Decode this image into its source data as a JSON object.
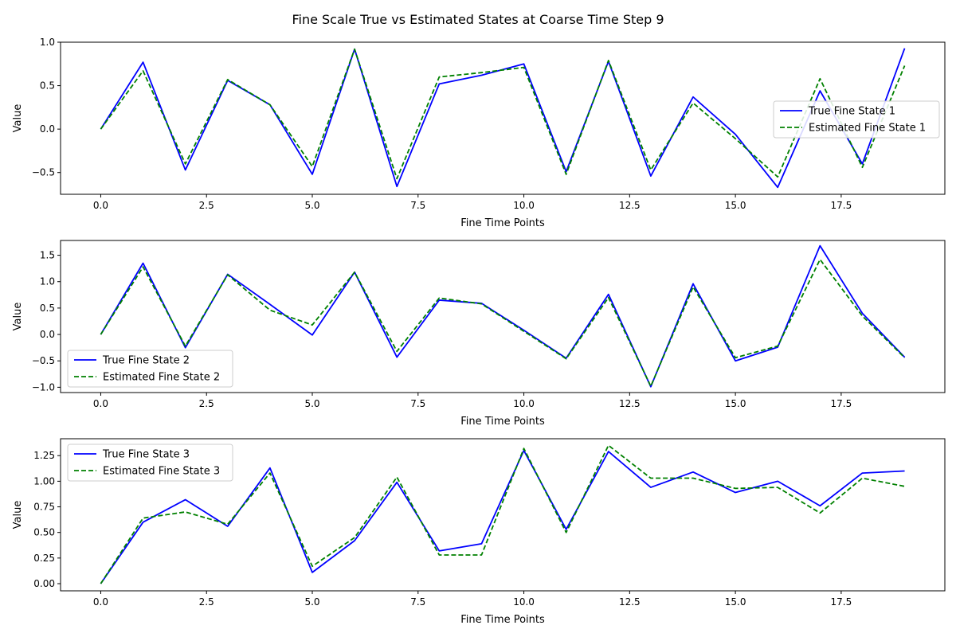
{
  "figure": {
    "title": "Fine Scale True vs Estimated States at Coarse Time Step 9"
  },
  "chart_data": [
    {
      "type": "line",
      "title": "",
      "xlabel": "Fine Time Points",
      "ylabel": "Value",
      "xlim": [
        -0.95,
        19.95
      ],
      "ylim": [
        -0.75,
        1.0
      ],
      "xticks": [
        0.0,
        2.5,
        5.0,
        7.5,
        10.0,
        12.5,
        15.0,
        17.5
      ],
      "xtick_labels": [
        "0.0",
        "2.5",
        "5.0",
        "7.5",
        "10.0",
        "12.5",
        "15.0",
        "17.5"
      ],
      "yticks": [
        -0.5,
        0.0,
        0.5,
        1.0
      ],
      "ytick_labels": [
        "−0.5",
        "0.0",
        "0.5",
        "1.0"
      ],
      "grid": false,
      "legend_position": "right",
      "x": [
        0,
        1,
        2,
        3,
        4,
        5,
        6,
        7,
        8,
        9,
        10,
        11,
        12,
        13,
        14,
        15,
        16,
        17,
        18,
        19
      ],
      "series": [
        {
          "name": "True Fine State 1",
          "color": "#0000ff",
          "style": "solid",
          "values": [
            0.0,
            0.77,
            -0.47,
            0.56,
            0.28,
            -0.52,
            0.92,
            -0.66,
            0.52,
            0.62,
            0.75,
            -0.49,
            0.78,
            -0.54,
            0.37,
            -0.06,
            -0.67,
            0.44,
            -0.4,
            0.93
          ]
        },
        {
          "name": "Estimated Fine State 1",
          "color": "#008000",
          "style": "dashed",
          "values": [
            0.0,
            0.67,
            -0.4,
            0.57,
            0.28,
            -0.43,
            0.92,
            -0.57,
            0.6,
            0.65,
            0.71,
            -0.52,
            0.79,
            -0.47,
            0.3,
            -0.11,
            -0.55,
            0.58,
            -0.44,
            0.73
          ]
        }
      ]
    },
    {
      "type": "line",
      "title": "",
      "xlabel": "Fine Time Points",
      "ylabel": "Value",
      "xlim": [
        -0.95,
        19.95
      ],
      "ylim": [
        -1.1,
        1.78
      ],
      "xticks": [
        0.0,
        2.5,
        5.0,
        7.5,
        10.0,
        12.5,
        15.0,
        17.5
      ],
      "xtick_labels": [
        "0.0",
        "2.5",
        "5.0",
        "7.5",
        "10.0",
        "12.5",
        "15.0",
        "17.5"
      ],
      "yticks": [
        -1.0,
        -0.5,
        0.0,
        0.5,
        1.0,
        1.5
      ],
      "ytick_labels": [
        "−1.0",
        "−0.5",
        "0.0",
        "0.5",
        "1.0",
        "1.5"
      ],
      "grid": false,
      "legend_position": "lower-left",
      "x": [
        0,
        1,
        2,
        3,
        4,
        5,
        6,
        7,
        8,
        9,
        10,
        11,
        12,
        13,
        14,
        15,
        16,
        17,
        18,
        19
      ],
      "series": [
        {
          "name": "True Fine State 2",
          "color": "#0000ff",
          "style": "solid",
          "values": [
            0.0,
            1.35,
            -0.25,
            1.14,
            0.57,
            -0.01,
            1.18,
            -0.43,
            0.65,
            0.59,
            0.08,
            -0.45,
            0.76,
            -0.99,
            0.96,
            -0.5,
            -0.24,
            1.68,
            0.4,
            -0.43
          ]
        },
        {
          "name": "Estimated Fine State 2",
          "color": "#008000",
          "style": "dashed",
          "values": [
            0.0,
            1.28,
            -0.22,
            1.13,
            0.46,
            0.18,
            1.18,
            -0.32,
            0.69,
            0.58,
            0.06,
            -0.46,
            0.7,
            -0.98,
            0.9,
            -0.44,
            -0.22,
            1.42,
            0.35,
            -0.44
          ]
        }
      ]
    },
    {
      "type": "line",
      "title": "",
      "xlabel": "Fine Time Points",
      "ylabel": "Value",
      "xlim": [
        -0.95,
        19.95
      ],
      "ylim": [
        -0.07,
        1.415
      ],
      "xticks": [
        0.0,
        2.5,
        5.0,
        7.5,
        10.0,
        12.5,
        15.0,
        17.5
      ],
      "xtick_labels": [
        "0.0",
        "2.5",
        "5.0",
        "7.5",
        "10.0",
        "12.5",
        "15.0",
        "17.5"
      ],
      "yticks": [
        0.0,
        0.25,
        0.5,
        0.75,
        1.0,
        1.25
      ],
      "ytick_labels": [
        "0.00",
        "0.25",
        "0.50",
        "0.75",
        "1.00",
        "1.25"
      ],
      "grid": false,
      "legend_position": "upper-left",
      "x": [
        0,
        1,
        2,
        3,
        4,
        5,
        6,
        7,
        8,
        9,
        10,
        11,
        12,
        13,
        14,
        15,
        16,
        17,
        18,
        19
      ],
      "series": [
        {
          "name": "True Fine State 3",
          "color": "#0000ff",
          "style": "solid",
          "values": [
            0.0,
            0.6,
            0.82,
            0.56,
            1.13,
            0.11,
            0.42,
            0.99,
            0.32,
            0.39,
            1.3,
            0.53,
            1.29,
            0.94,
            1.09,
            0.89,
            1.0,
            0.76,
            1.08,
            1.1
          ]
        },
        {
          "name": "Estimated Fine State 3",
          "color": "#008000",
          "style": "dashed",
          "values": [
            0.0,
            0.64,
            0.7,
            0.58,
            1.08,
            0.17,
            0.45,
            1.04,
            0.28,
            0.28,
            1.32,
            0.5,
            1.35,
            1.03,
            1.03,
            0.93,
            0.94,
            0.69,
            1.03,
            0.95
          ]
        }
      ]
    }
  ]
}
